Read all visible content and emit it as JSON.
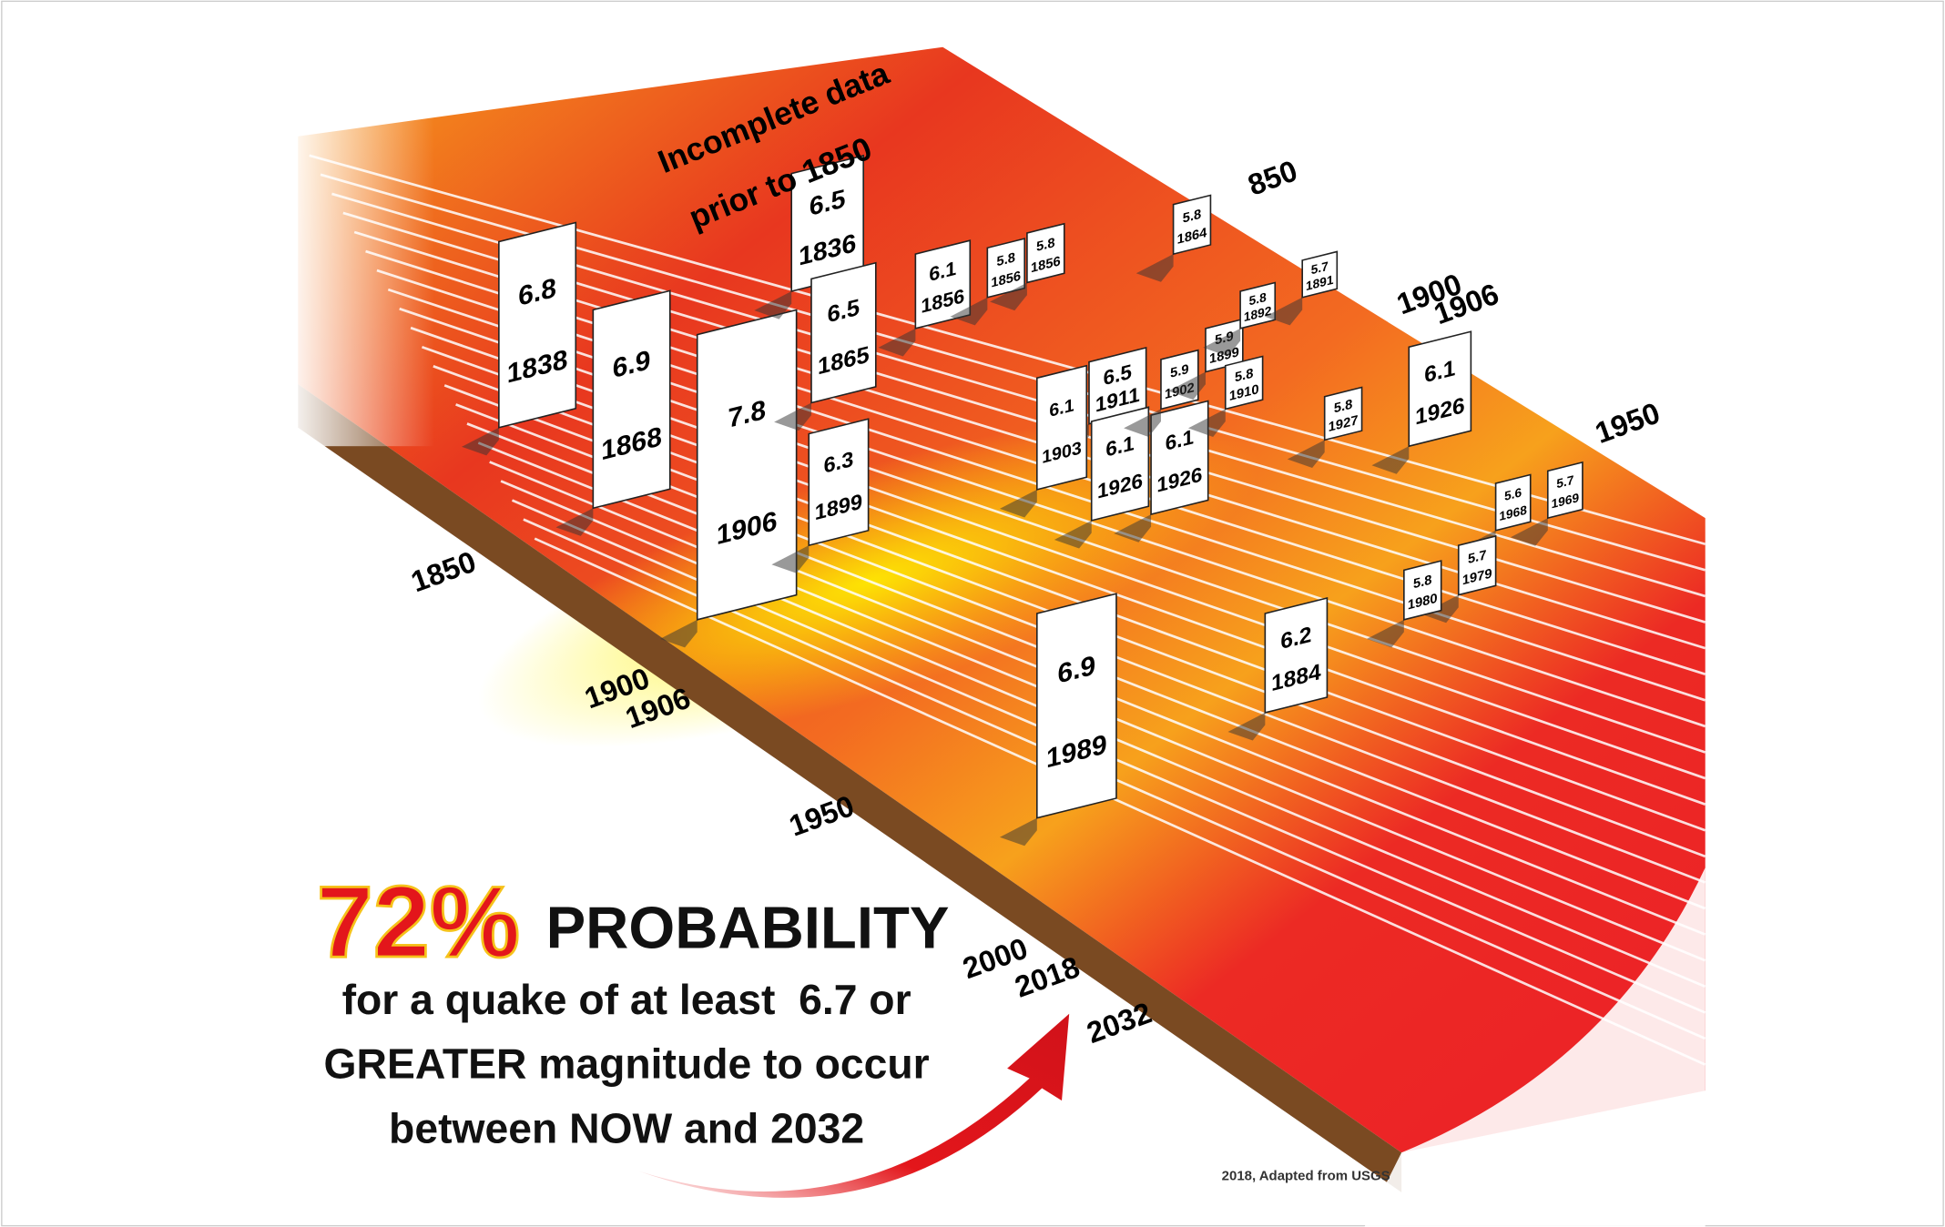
{
  "note_top": [
    "Incomplete data",
    "prior to 1850"
  ],
  "timeline_front": [
    "1850",
    "1900",
    "1906",
    "1950",
    "2000",
    "2018",
    "2032"
  ],
  "timeline_back": [
    "850",
    "1900",
    "1906",
    "1950"
  ],
  "quakes": [
    {
      "magnitude": "6.8",
      "year": "1838"
    },
    {
      "magnitude": "6.9",
      "year": "1868"
    },
    {
      "magnitude": "7.8",
      "year": "1906"
    },
    {
      "magnitude": "6.5",
      "year": "1836"
    },
    {
      "magnitude": "6.5",
      "year": "1865"
    },
    {
      "magnitude": "6.3",
      "year": "1899"
    },
    {
      "magnitude": "6.1",
      "year": "1856"
    },
    {
      "magnitude": "6.5",
      "year": "1911"
    },
    {
      "magnitude": "6.1",
      "year": "1903"
    },
    {
      "magnitude": "6.1",
      "year": "1926"
    },
    {
      "magnitude": "6.1",
      "year": "1926"
    },
    {
      "magnitude": "5.9",
      "year": "1902"
    },
    {
      "magnitude": "5.9",
      "year": "1899"
    },
    {
      "magnitude": "5.8",
      "year": "1910"
    },
    {
      "magnitude": "5.8",
      "year": "1856"
    },
    {
      "magnitude": "5.8",
      "year": "1856"
    },
    {
      "magnitude": "5.8",
      "year": "1864"
    },
    {
      "magnitude": "5.8",
      "year": "1892"
    },
    {
      "magnitude": "5.7",
      "year": "1891"
    },
    {
      "magnitude": "5.8",
      "year": "1927"
    },
    {
      "magnitude": "6.1",
      "year": "1926"
    },
    {
      "magnitude": "6.2",
      "year": "1884"
    },
    {
      "magnitude": "6.9",
      "year": "1989"
    },
    {
      "magnitude": "5.6",
      "year": "1968"
    },
    {
      "magnitude": "5.7",
      "year": "1969"
    },
    {
      "magnitude": "5.7",
      "year": "1979"
    },
    {
      "magnitude": "5.8",
      "year": "1980"
    }
  ],
  "headline": {
    "percent": "72%",
    "word": "PROBABILITY"
  },
  "body": [
    "for a quake of at least  6.7 or",
    "GREATER magnitude to occur",
    "between NOW and 2032"
  ],
  "credit": "2018, Adapted from USGS"
}
